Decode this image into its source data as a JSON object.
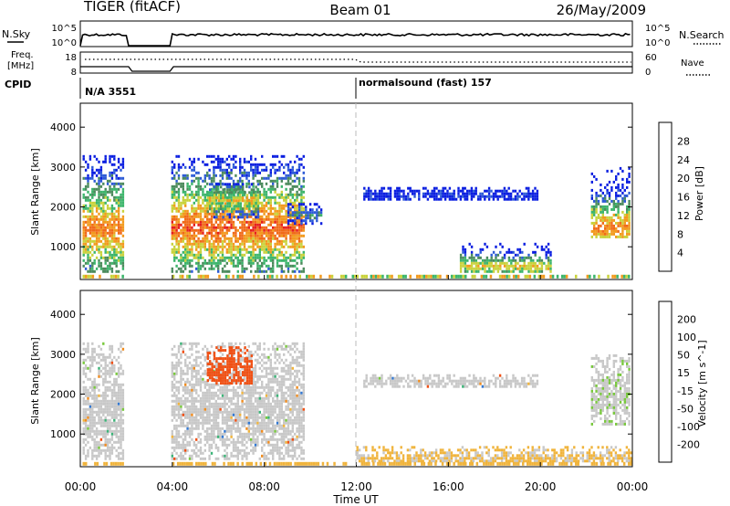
{
  "header": {
    "title": "TIGER (fitACF)",
    "beam": "Beam 01",
    "date": "26/May/2009"
  },
  "top_panels": {
    "nsky_label": "N.Sky",
    "nsearch_label": "N.Search",
    "freq_label_line1": "Freq.",
    "freq_label_line2": "[MHz]",
    "nave_label": "Nave",
    "cpid_label": "CPID",
    "left_ticks_top": [
      "10^5",
      "10^0"
    ],
    "right_ticks_top": [
      "10^5",
      "10^0"
    ],
    "left_ticks_freq": [
      "18",
      "8"
    ],
    "right_ticks_nave": [
      "60",
      "0"
    ],
    "cpid_segments": [
      {
        "label": "N/A 3551",
        "start_hour": 0
      },
      {
        "label": "normalsound (fast) 157",
        "start_hour": 12
      }
    ],
    "data_gaps_hours": [
      [
        2.1,
        3.95
      ]
    ]
  },
  "chart_data": [
    {
      "type": "heatmap",
      "title": "Power",
      "ylabel": "Slant Range [km]",
      "xlabel": "",
      "xlim": [
        0,
        24
      ],
      "ylim": [
        180,
        4600
      ],
      "yticks": [
        "1000",
        "2000",
        "3000",
        "4000"
      ],
      "colorbar": {
        "label": "Power [dB]",
        "ticks": [
          "4",
          "8",
          "12",
          "16",
          "20",
          "24",
          "28"
        ],
        "colors": [
          "#0a1ee0",
          "#2d5bd6",
          "#4b8a5c",
          "#3cb56b",
          "#c9d23c",
          "#f29a1e",
          "#f06a1a",
          "#e61e1e"
        ]
      },
      "scatter_regions": [
        {
          "t0": 0.1,
          "t1": 2.0,
          "r0": 300,
          "r1": 3300,
          "peak": 1450,
          "intensity": 24
        },
        {
          "t0": 3.95,
          "t1": 9.8,
          "r0": 300,
          "r1": 3300,
          "peak": 1500,
          "intensity": 26
        },
        {
          "t0": 5.5,
          "t1": 7.8,
          "r0": 1700,
          "r1": 2600,
          "peak": 2200,
          "intensity": 20
        },
        {
          "t0": 9.0,
          "t1": 10.6,
          "r0": 1500,
          "r1": 2100,
          "peak": 1800,
          "intensity": 10
        },
        {
          "t0": 12.3,
          "t1": 20.0,
          "r0": 2100,
          "r1": 2500,
          "peak": 2300,
          "intensity": 6
        },
        {
          "t0": 16.5,
          "t1": 20.5,
          "r0": 300,
          "r1": 1100,
          "peak": 500,
          "intensity": 20
        },
        {
          "t0": 22.2,
          "t1": 24.0,
          "r0": 1200,
          "r1": 3000,
          "peak": 1500,
          "intensity": 24
        }
      ]
    },
    {
      "type": "heatmap",
      "title": "Velocity",
      "ylabel": "Slant Range [km]",
      "xlabel": "Time UT",
      "xlim": [
        0,
        24
      ],
      "ylim": [
        180,
        4600
      ],
      "yticks": [
        "1000",
        "2000",
        "3000",
        "4000"
      ],
      "xticks": [
        "00:00",
        "04:00",
        "08:00",
        "12:00",
        "16:00",
        "20:00",
        "00:00"
      ],
      "colorbar": {
        "label": "Velocity [m s^-1]",
        "ticks": [
          "200",
          "100",
          "50",
          "15",
          "-15",
          "-50",
          "-100",
          "-200"
        ],
        "colors": [
          "#1e3cc8",
          "#3278d2",
          "#3cb478",
          "#78c83c",
          "#c8c8c8",
          "#f0b43c",
          "#f08c1e",
          "#f05014",
          "#e61e1e"
        ]
      },
      "scatter_regions": [
        {
          "t0": 0.1,
          "t1": 2.0,
          "r0": 300,
          "r1": 3300,
          "peak": 1500,
          "intensity": 0
        },
        {
          "t0": 3.95,
          "t1": 9.8,
          "r0": 300,
          "r1": 3300,
          "peak": 1600,
          "intensity": 0
        },
        {
          "t0": 5.5,
          "t1": 7.5,
          "r0": 2200,
          "r1": 3200,
          "peak": 2600,
          "intensity": -150
        },
        {
          "t0": 12.3,
          "t1": 20.0,
          "r0": 2100,
          "r1": 2500,
          "peak": 2300,
          "intensity": 0
        },
        {
          "t0": 12.0,
          "t1": 24.0,
          "r0": 250,
          "r1": 700,
          "peak": 400,
          "intensity": -30
        },
        {
          "t0": 22.2,
          "t1": 24.0,
          "r0": 1200,
          "r1": 3000,
          "peak": 2000,
          "intensity": 10
        }
      ]
    }
  ]
}
